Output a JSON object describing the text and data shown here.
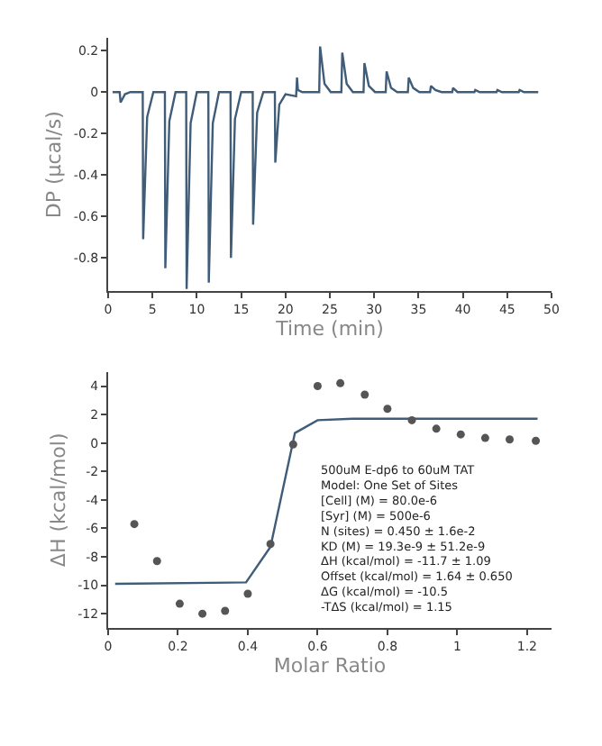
{
  "chart_data": [
    {
      "type": "line",
      "xlabel": "Time (min)",
      "ylabel": "DP (µcal/s)",
      "xlim": [
        0,
        50
      ],
      "ylim": [
        -0.96,
        0.26
      ],
      "xticks": [
        0,
        5,
        10,
        15,
        20,
        25,
        30,
        35,
        40,
        45,
        50
      ],
      "yticks": [
        {
          "value": 0.2,
          "label": "0.2"
        },
        0,
        {
          "value": -0.2,
          "label": "-0.2"
        },
        {
          "value": -0.4,
          "label": "-0.4"
        },
        {
          "value": -0.6,
          "label": "-0.6"
        },
        {
          "value": -0.8,
          "label": "-0.8"
        }
      ],
      "series": [
        {
          "color": "#3f5c78",
          "marker": "none",
          "line_style": "solid",
          "x": [
            0.5,
            1.3,
            1.4,
            1.9,
            2.5,
            3.9,
            3.95,
            4.4,
            5.1,
            6.4,
            6.45,
            6.9,
            7.6,
            8.8,
            8.85,
            9.3,
            10.0,
            11.3,
            11.35,
            11.8,
            12.5,
            13.8,
            13.85,
            14.3,
            15.0,
            16.3,
            16.35,
            16.8,
            17.5,
            18.8,
            18.85,
            19.3,
            20.0,
            21.2,
            21.3,
            21.4,
            21.9,
            22.6,
            23.8,
            23.9,
            24.4,
            25.1,
            26.3,
            26.4,
            26.9,
            27.6,
            28.8,
            28.9,
            29.4,
            30.1,
            31.3,
            31.4,
            31.9,
            32.6,
            33.8,
            33.9,
            34.4,
            35.1,
            36.3,
            36.4,
            36.9,
            37.6,
            38.8,
            38.9,
            39.4,
            40.1,
            41.3,
            41.4,
            41.9,
            42.6,
            43.8,
            43.9,
            44.4,
            45.1,
            46.3,
            46.4,
            46.9,
            48.5
          ],
          "values": [
            0,
            0,
            -0.05,
            -0.01,
            0,
            0,
            -0.71,
            -0.12,
            0,
            0,
            -0.85,
            -0.14,
            0,
            0,
            -0.95,
            -0.15,
            0,
            0,
            -0.92,
            -0.15,
            0,
            0,
            -0.8,
            -0.13,
            0,
            0,
            -0.64,
            -0.1,
            0,
            0,
            -0.34,
            -0.06,
            -0.01,
            -0.02,
            0.07,
            0.01,
            0,
            0,
            0,
            0.22,
            0.04,
            0,
            0,
            0.19,
            0.04,
            0,
            0,
            0.14,
            0.03,
            0,
            0,
            0.1,
            0.02,
            0,
            0,
            0.07,
            0.02,
            0,
            0,
            0.03,
            0.01,
            0,
            0,
            0.02,
            0,
            0,
            0,
            0.01,
            0,
            0,
            0,
            0.01,
            0,
            0,
            0,
            0.01,
            0,
            0
          ]
        }
      ]
    },
    {
      "type": "scatter",
      "xlabel": "Molar Ratio",
      "ylabel": "ΔH (kcal/mol)",
      "xlim": [
        0,
        1.27
      ],
      "ylim": [
        -13,
        5
      ],
      "xticks": [
        0,
        0.2,
        0.4,
        0.6,
        0.8,
        1,
        1.2
      ],
      "yticks": [
        4,
        2,
        0,
        {
          "value": -2,
          "label": "-2"
        },
        {
          "value": -4,
          "label": "-4"
        },
        {
          "value": -6,
          "label": "-6"
        },
        {
          "value": -8,
          "label": "-8"
        },
        {
          "value": -10,
          "label": "-10"
        },
        {
          "value": -12,
          "label": "-12"
        }
      ],
      "annotations": [
        "500uM E-dp6 to 60uM TAT",
        "Model: One Set of Sites",
        "[Cell] (M) = 80.0e-6",
        "[Syr] (M) = 500e-6",
        "N (sites) = 0.450 ± 1.6e-2",
        "KD (M) = 19.3e-9 ± 51.2e-9",
        "ΔH (kcal/mol) = -11.7 ± 1.09",
        "Offset (kcal/mol) = 1.64 ± 0.650",
        "ΔG (kcal/mol) = -10.5",
        "-TΔS (kcal/mol) = 1.15"
      ],
      "series": [
        {
          "type": "line",
          "color": "#3f5c78",
          "marker": "none",
          "line_style": "solid",
          "x": [
            0.02,
            0.395,
            0.465,
            0.535,
            0.6,
            0.7,
            1.23
          ],
          "values": [
            -9.9,
            -9.8,
            -7.3,
            0.7,
            1.6,
            1.7,
            1.7
          ]
        },
        {
          "type": "scatter",
          "color": "#555555",
          "marker": "circle",
          "x": [
            0.075,
            0.14,
            0.205,
            0.27,
            0.335,
            0.4,
            0.465,
            0.53,
            0.6,
            0.665,
            0.735,
            0.8,
            0.87,
            0.94,
            1.01,
            1.08,
            1.15,
            1.225
          ],
          "values": [
            -5.7,
            -8.3,
            -11.3,
            -12.0,
            -11.8,
            -10.6,
            -7.1,
            -0.1,
            4.0,
            4.2,
            3.4,
            2.4,
            1.6,
            1.0,
            0.6,
            0.35,
            0.25,
            0.15
          ]
        }
      ]
    }
  ]
}
